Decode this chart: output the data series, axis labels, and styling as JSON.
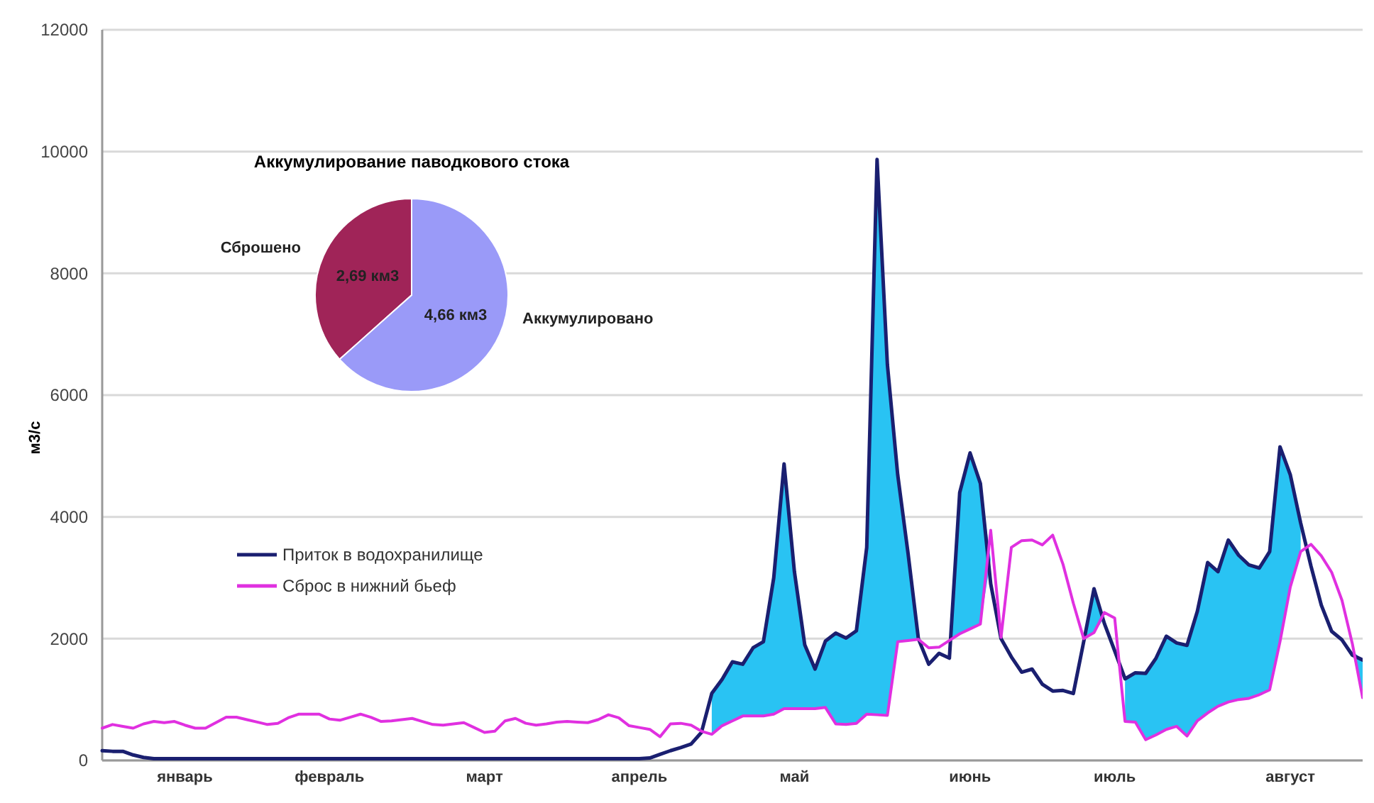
{
  "chart_data": [
    {
      "type": "line",
      "ylabel": "м3/с",
      "ylim": [
        0,
        12000
      ],
      "yticks": [
        0,
        2000,
        4000,
        6000,
        8000,
        10000,
        12000
      ],
      "categories": [
        null,
        null,
        null,
        null,
        null,
        null,
        null,
        null,
        "январь",
        null,
        null,
        null,
        null,
        null,
        null,
        null,
        null,
        null,
        null,
        null,
        null,
        null,
        "февраль",
        null,
        null,
        null,
        null,
        null,
        null,
        null,
        null,
        null,
        null,
        null,
        null,
        null,
        null,
        "март",
        null,
        null,
        null,
        null,
        null,
        null,
        null,
        null,
        null,
        null,
        null,
        null,
        null,
        null,
        "апрель",
        null,
        null,
        null,
        null,
        null,
        null,
        null,
        null,
        null,
        null,
        null,
        null,
        null,
        null,
        "май",
        null,
        null,
        null,
        null,
        null,
        null,
        null,
        null,
        null,
        null,
        null,
        null,
        null,
        null,
        null,
        null,
        "июнь",
        null,
        null,
        null,
        null,
        null,
        null,
        null,
        null,
        null,
        null,
        null,
        null,
        null,
        "июль",
        null,
        null,
        null,
        null,
        null,
        null,
        null,
        null,
        null,
        null,
        null,
        null,
        null,
        null,
        null,
        null,
        "август",
        null,
        null,
        null,
        null,
        null,
        null,
        null
      ],
      "grid": "y",
      "legend": "left",
      "line_style": "solid",
      "marker": "none",
      "series": [
        {
          "name": "Приток в водохранилище",
          "color": "#1a1f70",
          "lower": [
            null,
            null,
            null,
            null,
            null,
            null,
            null,
            null,
            null,
            null,
            null,
            null,
            null,
            null,
            null,
            null,
            null,
            null,
            null,
            null,
            null,
            null,
            null,
            null,
            null,
            null,
            null,
            null,
            null,
            null,
            null,
            null,
            null,
            null,
            null,
            null,
            null,
            null,
            null,
            null,
            null,
            null,
            null,
            null,
            null,
            null,
            null,
            null,
            null,
            null,
            null,
            null,
            null,
            null,
            null,
            null,
            null,
            null,
            null,
            430,
            570,
            650,
            730,
            730,
            730,
            760,
            850,
            850,
            850,
            850,
            870,
            600,
            590,
            610,
            760,
            750,
            740,
            1950,
            1970,
            1990,
            null,
            null,
            2000,
            2080,
            2160,
            2240,
            3300,
            null,
            null,
            null,
            null,
            null,
            null,
            null,
            null,
            1980,
            2100,
            2340,
            null,
            640,
            630,
            340,
            420,
            510,
            560,
            400,
            650,
            780,
            890,
            960,
            1000,
            1020,
            1080,
            1160,
            1950,
            2850,
            3430,
            null,
            null,
            null,
            null,
            1800,
            1030
          ],
          "upper": [
            null,
            null,
            null,
            null,
            null,
            null,
            null,
            null,
            null,
            null,
            null,
            null,
            null,
            null,
            null,
            null,
            null,
            null,
            null,
            null,
            null,
            null,
            null,
            null,
            null,
            null,
            null,
            null,
            null,
            null,
            null,
            null,
            null,
            null,
            null,
            null,
            null,
            null,
            null,
            null,
            null,
            null,
            null,
            null,
            null,
            null,
            null,
            null,
            null,
            null,
            null,
            null,
            null,
            null,
            null,
            null,
            null,
            null,
            null,
            1100,
            1330,
            1620,
            1580,
            1850,
            1950,
            3000,
            4870,
            3100,
            1900,
            1500,
            1960,
            2090,
            2010,
            2130,
            3500,
            9870,
            6500,
            4690,
            3400,
            2000,
            null,
            null,
            2000,
            4400,
            5050,
            4550,
            3300,
            null,
            null,
            null,
            null,
            null,
            null,
            null,
            null,
            1980,
            2820,
            2340,
            null,
            1340,
            1440,
            1430,
            1680,
            2040,
            1930,
            1890,
            2450,
            3250,
            3100,
            3620,
            3370,
            3210,
            3160,
            3430,
            5150,
            4690,
            3900,
            null,
            null,
            null,
            null,
            1800,
            1650
          ],
          "values": [
            160,
            150,
            150,
            90,
            50,
            30,
            30,
            30,
            30,
            30,
            30,
            30,
            30,
            30,
            30,
            30,
            30,
            30,
            30,
            30,
            30,
            30,
            30,
            30,
            30,
            30,
            30,
            30,
            30,
            30,
            30,
            30,
            30,
            30,
            30,
            30,
            30,
            30,
            30,
            30,
            30,
            30,
            30,
            30,
            30,
            30,
            30,
            30,
            30,
            30,
            30,
            30,
            30,
            40,
            100,
            160,
            210,
            270,
            460,
            1100,
            1330,
            1620,
            1580,
            1850,
            1950,
            3000,
            4870,
            3100,
            1900,
            1500,
            1960,
            2090,
            2010,
            2130,
            3500,
            9870,
            6500,
            4690,
            3400,
            2000,
            1580,
            1760,
            1680,
            4400,
            5050,
            4550,
            2900,
            2000,
            1700,
            1450,
            1500,
            1250,
            1140,
            1150,
            1100,
            1950,
            2820,
            2250,
            1800,
            1340,
            1440,
            1430,
            1680,
            2040,
            1930,
            1890,
            2450,
            3250,
            3100,
            3620,
            3370,
            3210,
            3160,
            3430,
            5150,
            4690,
            3900,
            3190,
            2550,
            2120,
            1980,
            1730,
            1650
          ]
        },
        {
          "name": "Сброс в нижний бьеф",
          "color": "#e030e0",
          "values": [
            530,
            590,
            560,
            530,
            600,
            640,
            620,
            640,
            580,
            530,
            530,
            620,
            710,
            710,
            670,
            630,
            590,
            610,
            700,
            760,
            760,
            760,
            680,
            660,
            710,
            760,
            710,
            640,
            650,
            670,
            690,
            640,
            590,
            580,
            600,
            620,
            540,
            460,
            480,
            650,
            690,
            610,
            580,
            600,
            630,
            640,
            630,
            620,
            670,
            750,
            700,
            570,
            540,
            510,
            390,
            600,
            610,
            580,
            480,
            430,
            570,
            650,
            730,
            730,
            730,
            760,
            850,
            850,
            850,
            850,
            870,
            600,
            590,
            610,
            760,
            750,
            740,
            1950,
            1970,
            1990,
            1850,
            1860,
            1970,
            2080,
            2160,
            2240,
            3780,
            2020,
            3500,
            3610,
            3620,
            3540,
            3700,
            3220,
            2580,
            2000,
            2100,
            2430,
            2340,
            640,
            630,
            340,
            420,
            510,
            560,
            400,
            650,
            780,
            890,
            960,
            1000,
            1020,
            1080,
            1160,
            1950,
            2850,
            3430,
            3550,
            3360,
            3090,
            2630,
            1920,
            1030
          ]
        }
      ]
    },
    {
      "type": "pie",
      "title": "Аккумулирование паводкового стока",
      "categories": [
        "Сброшено",
        "Аккумулировано"
      ],
      "values": [
        2.69,
        4.66
      ],
      "value_labels": [
        "2,69 км3",
        "4,66 км3"
      ],
      "colors": [
        "#a02458",
        "#9a9af8"
      ]
    }
  ]
}
